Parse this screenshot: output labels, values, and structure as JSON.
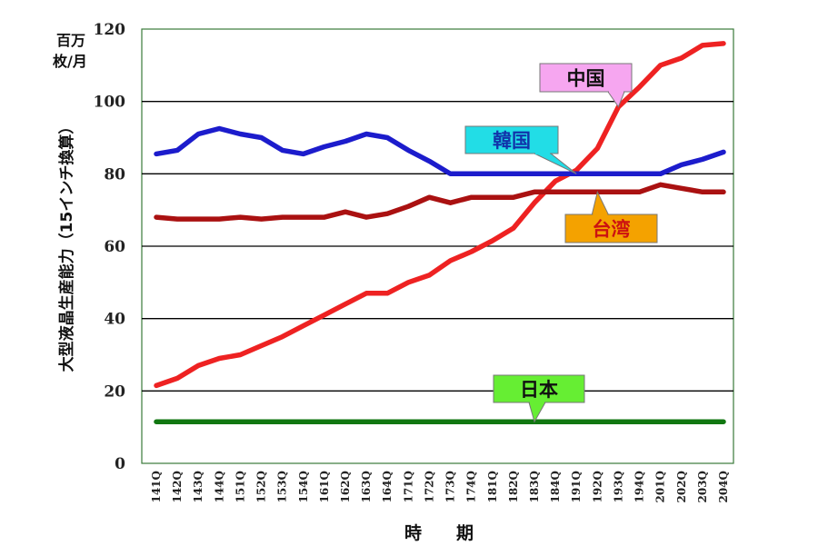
{
  "chart_data": {
    "type": "line",
    "unit_label_line1": "百万",
    "unit_label_line2": "枚/月",
    "ylabel": "大型液晶生産能力（15インチ換算）",
    "xlabel": "時　　期",
    "ylim": [
      0,
      120
    ],
    "yticks": [
      "0",
      "20",
      "40",
      "60",
      "80",
      "100",
      "120"
    ],
    "grid": true,
    "categories": [
      "141Q",
      "142Q",
      "143Q",
      "144Q",
      "151Q",
      "152Q",
      "153Q",
      "154Q",
      "161Q",
      "162Q",
      "163Q",
      "164Q",
      "171Q",
      "172Q",
      "173Q",
      "174Q",
      "181Q",
      "182Q",
      "183Q",
      "184Q",
      "191Q",
      "192Q",
      "193Q",
      "194Q",
      "201Q",
      "202Q",
      "203Q",
      "204Q"
    ],
    "series": [
      {
        "name": "中国",
        "color": "#ee2222",
        "values": [
          21.5,
          23.5,
          27,
          29,
          30,
          32.5,
          35,
          38,
          41,
          44,
          47,
          47,
          50,
          52,
          56,
          58.5,
          61.5,
          65,
          72,
          78,
          81,
          87,
          98.5,
          104,
          110,
          112,
          115.5,
          116
        ]
      },
      {
        "name": "韓国",
        "color": "#1c1ccc",
        "values": [
          85.5,
          86.5,
          91,
          92.5,
          91,
          90,
          86.5,
          85.5,
          87.5,
          89,
          91,
          90,
          86.5,
          83.5,
          80,
          80,
          80,
          80,
          80,
          80,
          80,
          80,
          80,
          80,
          80,
          82.5,
          84,
          86
        ]
      },
      {
        "name": "台湾",
        "color": "#aa1111",
        "values": [
          68,
          67.5,
          67.5,
          67.5,
          68,
          67.5,
          68,
          68,
          68,
          69.5,
          68,
          69,
          71,
          73.5,
          72,
          73.5,
          73.5,
          73.5,
          75,
          75,
          75,
          75,
          75,
          75,
          77,
          76,
          75,
          75
        ]
      },
      {
        "name": "日本",
        "color": "#117711",
        "values": [
          11.5,
          11.5,
          11.5,
          11.5,
          11.5,
          11.5,
          11.5,
          11.5,
          11.5,
          11.5,
          11.5,
          11.5,
          11.5,
          11.5,
          11.5,
          11.5,
          11.5,
          11.5,
          11.5,
          11.5,
          11.5,
          11.5,
          11.5,
          11.5,
          11.5,
          11.5,
          11.5,
          11.5
        ]
      }
    ],
    "annotations": [
      {
        "text": "中国",
        "bg": "#f6a6f0",
        "fg": "#111111"
      },
      {
        "text": "韓国",
        "bg": "#22dde6",
        "fg": "#1133aa"
      },
      {
        "text": "台湾",
        "bg": "#f4a200",
        "fg": "#cc1111"
      },
      {
        "text": "日本",
        "bg": "#66ee33",
        "fg": "#111111"
      }
    ]
  }
}
